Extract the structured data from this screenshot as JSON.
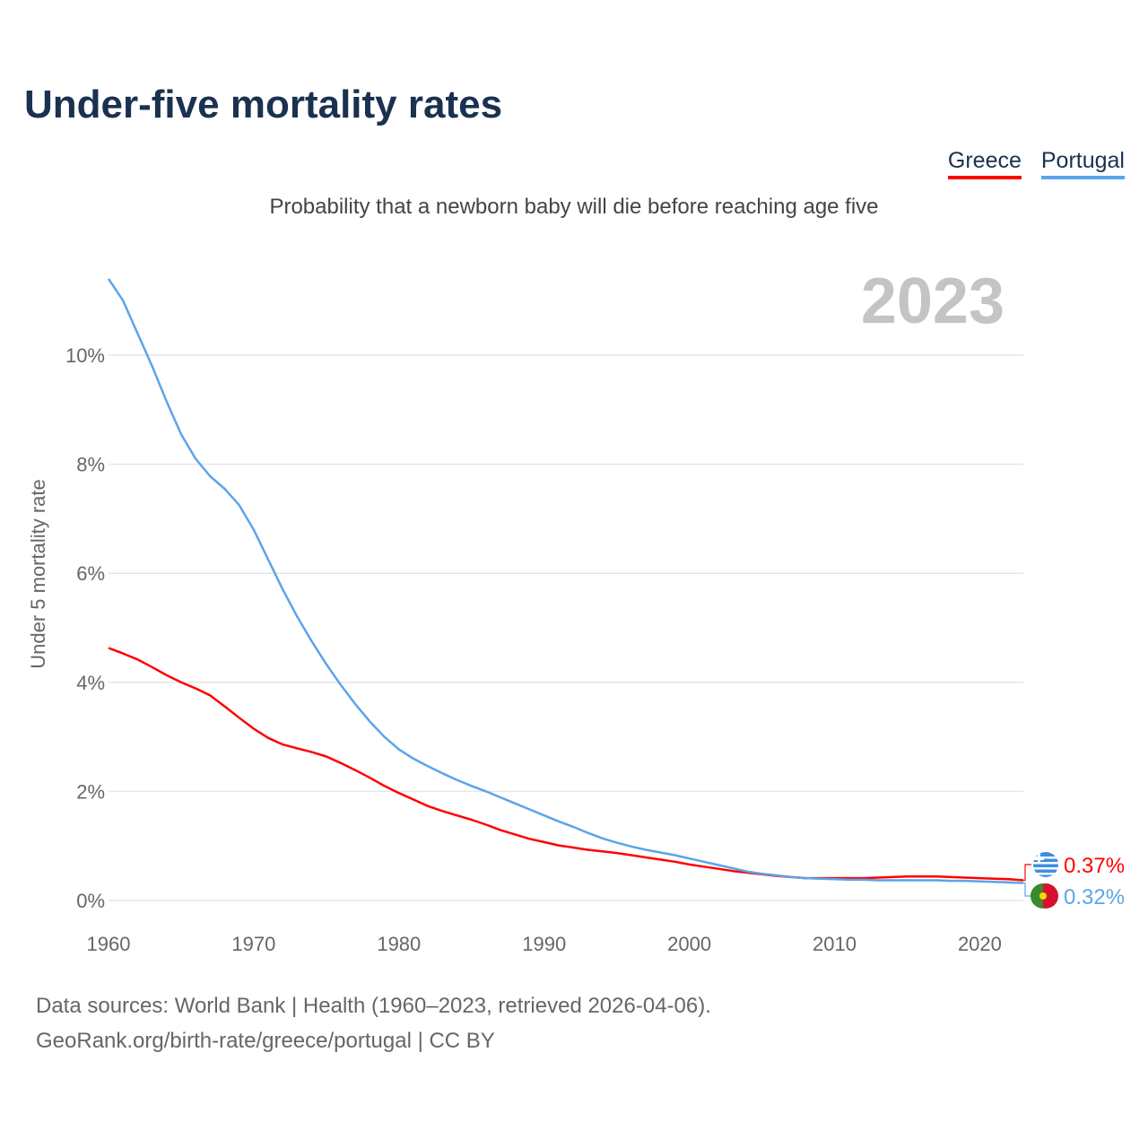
{
  "title": "Under-five mortality rates",
  "subtitle": "Probability that a newborn baby will die before reaching age five",
  "sources": [
    "Data sources: World Bank | Health (1960–2023, retrieved 2026-04-06).",
    "GeoRank.org/birth-rate/greece/portugal | CC BY"
  ],
  "chart_data": {
    "type": "line",
    "title": "Under-five mortality rates",
    "year_label": "2023",
    "xlabel": "",
    "ylabel": "Under 5 mortality rate",
    "xlim": [
      1960,
      2023
    ],
    "ylim": [
      0,
      10
    ],
    "x_ticks": [
      1960,
      1970,
      1980,
      1990,
      2000,
      2010,
      2020
    ],
    "y_ticks": [
      0,
      2,
      4,
      6,
      8,
      10
    ],
    "y_tick_labels": [
      "0%",
      "2%",
      "4%",
      "6%",
      "8%",
      "10%"
    ],
    "grid": true,
    "legend": "top-right",
    "x": [
      1960,
      1961,
      1962,
      1963,
      1964,
      1965,
      1966,
      1967,
      1968,
      1969,
      1970,
      1971,
      1972,
      1973,
      1974,
      1975,
      1976,
      1977,
      1978,
      1979,
      1980,
      1981,
      1982,
      1983,
      1984,
      1985,
      1986,
      1987,
      1988,
      1989,
      1990,
      1991,
      1992,
      1993,
      1994,
      1995,
      1996,
      1997,
      1998,
      1999,
      2000,
      2001,
      2002,
      2003,
      2004,
      2005,
      2006,
      2007,
      2008,
      2009,
      2010,
      2011,
      2012,
      2013,
      2014,
      2015,
      2016,
      2017,
      2018,
      2019,
      2020,
      2021,
      2022,
      2023
    ],
    "series": [
      {
        "name": "Greece",
        "color": "#ff0000",
        "end_label": "0.37%",
        "flag": "greece-flag",
        "values": [
          4.63,
          4.53,
          4.42,
          4.28,
          4.13,
          4.0,
          3.89,
          3.76,
          3.56,
          3.35,
          3.15,
          2.98,
          2.86,
          2.79,
          2.72,
          2.64,
          2.52,
          2.39,
          2.25,
          2.1,
          1.97,
          1.85,
          1.73,
          1.64,
          1.56,
          1.48,
          1.39,
          1.29,
          1.21,
          1.13,
          1.07,
          1.01,
          0.97,
          0.93,
          0.9,
          0.87,
          0.83,
          0.79,
          0.75,
          0.71,
          0.66,
          0.62,
          0.58,
          0.54,
          0.51,
          0.48,
          0.45,
          0.43,
          0.41,
          0.41,
          0.41,
          0.41,
          0.41,
          0.42,
          0.43,
          0.44,
          0.44,
          0.44,
          0.43,
          0.42,
          0.41,
          0.4,
          0.39,
          0.37
        ]
      },
      {
        "name": "Portugal",
        "color": "#5ba4ea",
        "end_label": "0.32%",
        "flag": "portugal-flag",
        "values": [
          11.4,
          11.0,
          10.4,
          9.8,
          9.15,
          8.55,
          8.1,
          7.78,
          7.55,
          7.25,
          6.8,
          6.25,
          5.7,
          5.2,
          4.75,
          4.33,
          3.95,
          3.6,
          3.28,
          3.0,
          2.77,
          2.6,
          2.46,
          2.33,
          2.21,
          2.1,
          2.0,
          1.89,
          1.78,
          1.67,
          1.56,
          1.45,
          1.35,
          1.24,
          1.14,
          1.06,
          0.99,
          0.93,
          0.88,
          0.83,
          0.77,
          0.71,
          0.65,
          0.59,
          0.53,
          0.49,
          0.46,
          0.43,
          0.41,
          0.4,
          0.39,
          0.38,
          0.38,
          0.37,
          0.37,
          0.37,
          0.37,
          0.37,
          0.36,
          0.36,
          0.35,
          0.34,
          0.33,
          0.32
        ]
      }
    ]
  }
}
